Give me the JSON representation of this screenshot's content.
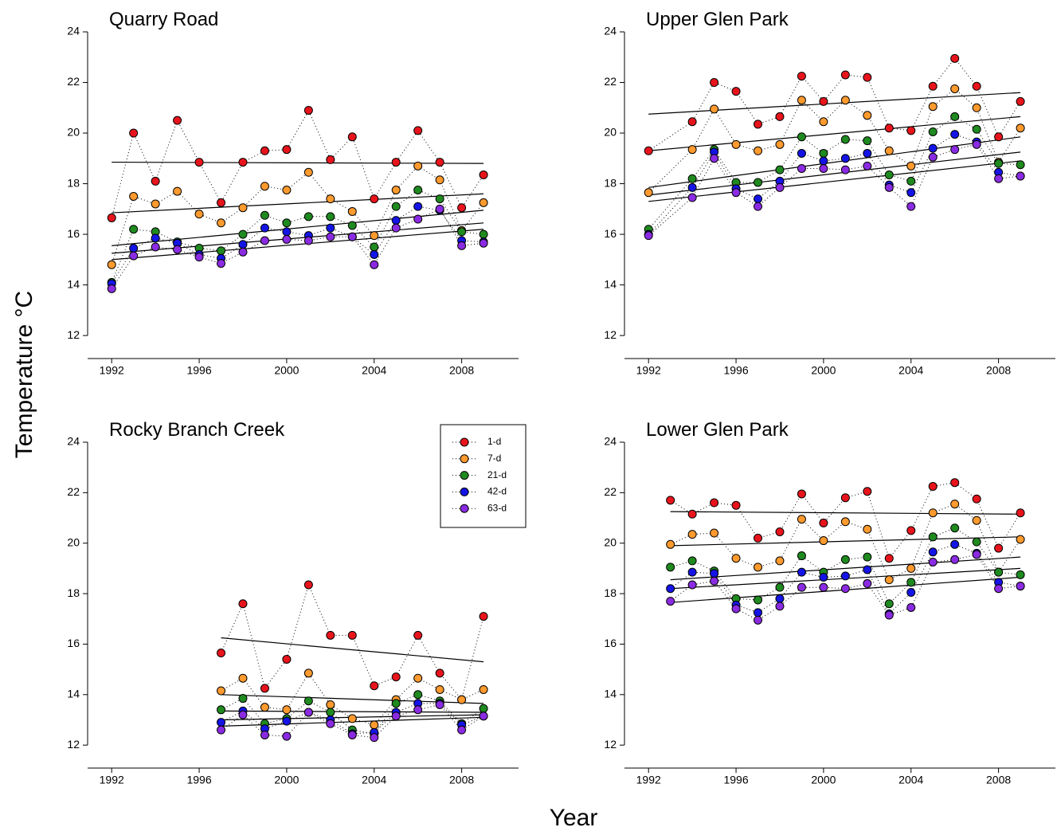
{
  "y_label": "Temperature °C",
  "x_label": "Year",
  "chart_data": [
    {
      "type": "line",
      "title": "Quarry Road",
      "x": [
        1992,
        1993,
        1994,
        1995,
        1996,
        1997,
        1998,
        1999,
        2000,
        2001,
        2002,
        2003,
        2004,
        2005,
        2006,
        2007,
        2008,
        2009
      ],
      "xlim": [
        1990.9,
        2010.6
      ],
      "xticks": [
        1992,
        1996,
        2000,
        2004,
        2008
      ],
      "ylim": [
        11.5,
        24
      ],
      "yticks": [
        12,
        14,
        16,
        18,
        20,
        22,
        24
      ],
      "series": [
        {
          "color": "#e8141c",
          "values": [
            16.65,
            20.0,
            18.1,
            20.5,
            18.85,
            17.25,
            18.85,
            19.3,
            19.35,
            20.9,
            18.95,
            19.85,
            17.4,
            18.85,
            20.1,
            18.85,
            17.05,
            18.35
          ],
          "trend": [
            18.85,
            18.8
          ]
        },
        {
          "color": "#ff9a2e",
          "values": [
            14.8,
            17.5,
            17.2,
            17.7,
            16.8,
            16.45,
            17.05,
            17.9,
            17.75,
            18.45,
            17.4,
            16.9,
            15.95,
            17.75,
            18.7,
            18.15,
            16.15,
            17.25
          ],
          "trend": [
            16.85,
            17.6
          ]
        },
        {
          "color": "#1f8a1f",
          "values": [
            14.1,
            16.2,
            16.1,
            15.7,
            15.45,
            15.35,
            16.0,
            16.75,
            16.45,
            16.7,
            16.7,
            16.35,
            15.5,
            17.1,
            17.75,
            17.4,
            16.1,
            16.0
          ],
          "trend": [
            15.55,
            16.95
          ]
        },
        {
          "color": "#1414e6",
          "values": [
            14.05,
            15.45,
            15.85,
            15.65,
            15.2,
            15.05,
            15.6,
            16.25,
            16.1,
            15.95,
            16.25,
            15.9,
            15.2,
            16.55,
            17.1,
            16.95,
            15.75,
            15.7
          ],
          "trend": [
            15.25,
            16.45
          ]
        },
        {
          "color": "#8a2be2",
          "values": [
            13.85,
            15.15,
            15.5,
            15.4,
            15.1,
            14.85,
            15.3,
            15.75,
            15.8,
            15.75,
            15.9,
            15.9,
            14.8,
            16.25,
            16.6,
            17.0,
            15.55,
            15.65
          ],
          "trend": [
            15.0,
            16.2
          ]
        }
      ]
    },
    {
      "type": "line",
      "title": "Upper Glen Park",
      "x": [
        1992,
        1994,
        1995,
        1996,
        1997,
        1998,
        1999,
        2000,
        2001,
        2002,
        2003,
        2004,
        2005,
        2006,
        2007,
        2008,
        2009
      ],
      "xlim": [
        1990.9,
        2010.6
      ],
      "xticks": [
        1992,
        1996,
        2000,
        2004,
        2008
      ],
      "ylim": [
        11.5,
        24
      ],
      "yticks": [
        12,
        14,
        16,
        18,
        20,
        22,
        24
      ],
      "series": [
        {
          "color": "#e8141c",
          "values": [
            19.3,
            20.45,
            22.0,
            21.65,
            20.35,
            20.65,
            22.25,
            21.25,
            22.3,
            22.2,
            20.2,
            20.1,
            21.85,
            22.95,
            21.85,
            19.85,
            21.25
          ],
          "trend": [
            20.75,
            21.6
          ]
        },
        {
          "color": "#ff9a2e",
          "values": [
            17.65,
            19.35,
            20.95,
            19.55,
            19.3,
            19.55,
            21.3,
            20.45,
            21.3,
            20.7,
            19.3,
            18.7,
            21.05,
            21.75,
            21.0,
            18.85,
            20.2
          ],
          "trend": [
            19.3,
            20.65
          ]
        },
        {
          "color": "#1f8a1f",
          "values": [
            16.2,
            18.2,
            19.35,
            18.05,
            18.05,
            18.55,
            19.85,
            19.2,
            19.75,
            19.7,
            18.35,
            18.1,
            20.05,
            20.65,
            20.15,
            18.8,
            18.75
          ],
          "trend": [
            17.85,
            19.85
          ]
        },
        {
          "color": "#1414e6",
          "values": [
            16.0,
            17.85,
            19.25,
            17.8,
            17.4,
            18.1,
            19.2,
            18.9,
            19.0,
            19.2,
            17.95,
            17.65,
            19.4,
            19.95,
            19.65,
            18.45,
            18.3
          ],
          "trend": [
            17.55,
            19.25
          ]
        },
        {
          "color": "#8a2be2",
          "values": [
            15.95,
            17.45,
            19.0,
            17.65,
            17.1,
            17.85,
            18.6,
            18.6,
            18.55,
            18.7,
            17.85,
            17.1,
            19.05,
            19.35,
            19.55,
            18.2,
            18.3
          ],
          "trend": [
            17.3,
            18.9
          ]
        }
      ]
    },
    {
      "type": "line",
      "title": "Rocky Branch Creek",
      "legend": "upper right",
      "x": [
        1997,
        1998,
        1999,
        2000,
        2001,
        2002,
        2003,
        2004,
        2005,
        2006,
        2007,
        2008,
        2009
      ],
      "xlim": [
        1990.9,
        2010.6
      ],
      "xticks": [
        1992,
        1996,
        2000,
        2004,
        2008
      ],
      "ylim": [
        11.5,
        24
      ],
      "yticks": [
        12,
        14,
        16,
        18,
        20,
        22,
        24
      ],
      "series": [
        {
          "name": "1-d",
          "color": "#e8141c",
          "values": [
            15.65,
            17.6,
            14.25,
            15.4,
            18.35,
            16.35,
            16.35,
            14.35,
            14.7,
            16.35,
            14.85,
            13.8,
            17.1
          ],
          "trend": [
            16.25,
            15.3
          ]
        },
        {
          "name": "7-d",
          "color": "#ff9a2e",
          "values": [
            14.15,
            14.65,
            13.5,
            13.4,
            14.85,
            13.6,
            13.05,
            12.8,
            13.8,
            14.65,
            14.2,
            13.8,
            14.2
          ],
          "trend": [
            14.0,
            13.65
          ]
        },
        {
          "name": "21-d",
          "color": "#1f8a1f",
          "values": [
            13.4,
            13.85,
            12.85,
            13.05,
            13.75,
            13.3,
            12.6,
            12.45,
            13.65,
            14.0,
            13.75,
            12.85,
            13.45
          ],
          "trend": [
            13.35,
            13.3
          ]
        },
        {
          "name": "42-d",
          "color": "#1414e6",
          "values": [
            12.9,
            13.35,
            12.65,
            12.95,
            13.3,
            13.0,
            12.45,
            12.5,
            13.3,
            13.65,
            13.65,
            12.8,
            13.15
          ],
          "trend": [
            13.0,
            13.2
          ]
        },
        {
          "name": "63-d",
          "color": "#8a2be2",
          "values": [
            12.6,
            13.2,
            12.4,
            12.35,
            13.3,
            12.85,
            12.4,
            12.3,
            13.15,
            13.4,
            13.6,
            12.6,
            13.15
          ],
          "trend": [
            12.75,
            13.1
          ]
        }
      ]
    },
    {
      "type": "line",
      "title": "Lower Glen Park",
      "x": [
        1993,
        1994,
        1995,
        1996,
        1997,
        1998,
        1999,
        2000,
        2001,
        2002,
        2003,
        2004,
        2005,
        2006,
        2007,
        2008,
        2009
      ],
      "xlim": [
        1990.9,
        2010.6
      ],
      "xticks": [
        1992,
        1996,
        2000,
        2004,
        2008
      ],
      "ylim": [
        11.5,
        24
      ],
      "yticks": [
        12,
        14,
        16,
        18,
        20,
        22,
        24
      ],
      "series": [
        {
          "color": "#e8141c",
          "values": [
            21.7,
            21.15,
            21.6,
            21.5,
            20.2,
            20.45,
            21.95,
            20.8,
            21.8,
            22.05,
            19.4,
            20.5,
            22.25,
            22.4,
            21.75,
            19.8,
            21.2
          ],
          "trend": [
            21.25,
            21.15
          ]
        },
        {
          "color": "#ff9a2e",
          "values": [
            19.95,
            20.35,
            20.4,
            19.4,
            19.05,
            19.3,
            20.95,
            20.1,
            20.85,
            20.55,
            18.55,
            19.0,
            21.2,
            21.55,
            20.9,
            18.85,
            20.15
          ],
          "trend": [
            19.9,
            20.25
          ]
        },
        {
          "color": "#1f8a1f",
          "values": [
            19.05,
            19.3,
            18.9,
            17.8,
            17.75,
            18.25,
            19.5,
            18.85,
            19.35,
            19.45,
            17.6,
            18.45,
            20.25,
            20.6,
            20.05,
            18.85,
            18.75
          ],
          "trend": [
            18.55,
            19.45
          ]
        },
        {
          "color": "#1414e6",
          "values": [
            18.2,
            18.85,
            18.8,
            17.55,
            17.25,
            17.8,
            18.85,
            18.65,
            18.7,
            18.95,
            17.2,
            18.05,
            19.65,
            19.95,
            19.6,
            18.45,
            18.3
          ],
          "trend": [
            18.2,
            19.0
          ]
        },
        {
          "color": "#8a2be2",
          "values": [
            17.7,
            18.35,
            18.5,
            17.4,
            16.95,
            17.5,
            18.25,
            18.25,
            18.2,
            18.4,
            17.15,
            17.45,
            19.25,
            19.35,
            19.55,
            18.2,
            18.3
          ],
          "trend": [
            17.65,
            18.65
          ]
        }
      ]
    }
  ]
}
